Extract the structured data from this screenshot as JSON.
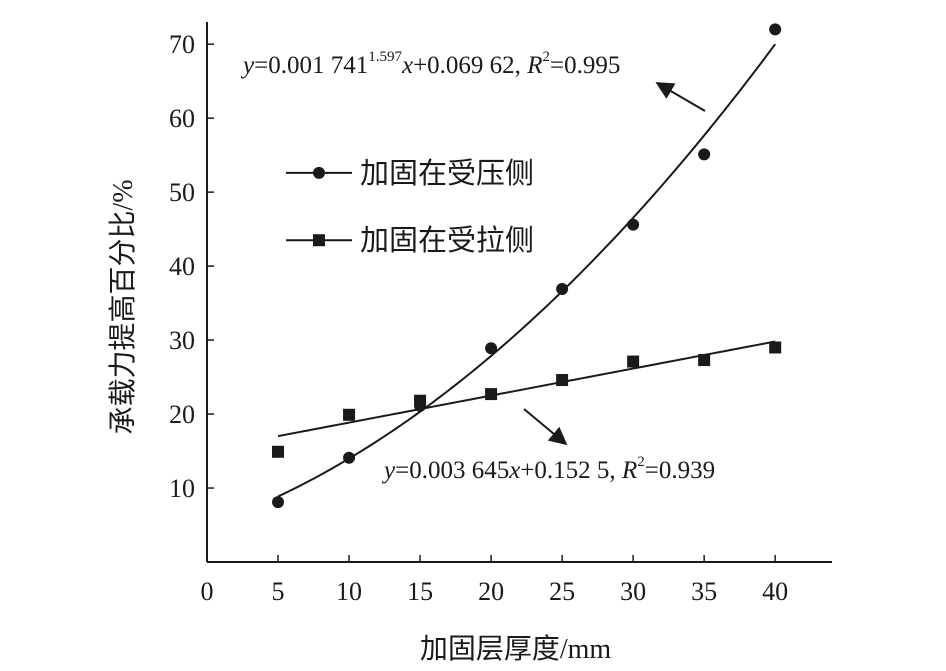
{
  "chart_data": {
    "type": "scatter",
    "title": "",
    "xlabel": "加固层厚度/mm",
    "ylabel": "承载力提高百分比/%",
    "xlim": [
      0,
      44
    ],
    "ylim": [
      0,
      73
    ],
    "xticks": [
      0,
      5,
      10,
      15,
      20,
      25,
      30,
      35,
      40
    ],
    "yticks": [
      10,
      20,
      30,
      40,
      50,
      60,
      70
    ],
    "grid": false,
    "legend_position": "upper-left",
    "x": [
      5,
      10,
      15,
      20,
      25,
      30,
      35,
      40
    ],
    "series": [
      {
        "name": "加固在受压侧",
        "marker": "circle",
        "color": "#1a1a1a",
        "values": [
          8.1,
          14.1,
          21.1,
          28.9,
          36.9,
          45.6,
          55.1,
          72.0
        ],
        "fit_type": "power",
        "equation": {
          "y": "y",
          "coef": "=0.001 741",
          "exp": "1.597",
          "x": "x",
          "rest": "+0.069 62, ",
          "R": "R",
          "r_exp": "2",
          "r_val": "=0.995"
        }
      },
      {
        "name": "加固在受拉侧",
        "marker": "square",
        "color": "#1a1a1a",
        "values": [
          14.9,
          19.9,
          21.8,
          22.7,
          24.6,
          27.1,
          27.3,
          29.0
        ],
        "fit_type": "linear",
        "equation": {
          "y": "y",
          "coef": "=0.003 645",
          "x": "x",
          "rest": "+0.152 5, ",
          "R": "R",
          "r_exp": "2",
          "r_val": "=0.939"
        }
      }
    ]
  }
}
